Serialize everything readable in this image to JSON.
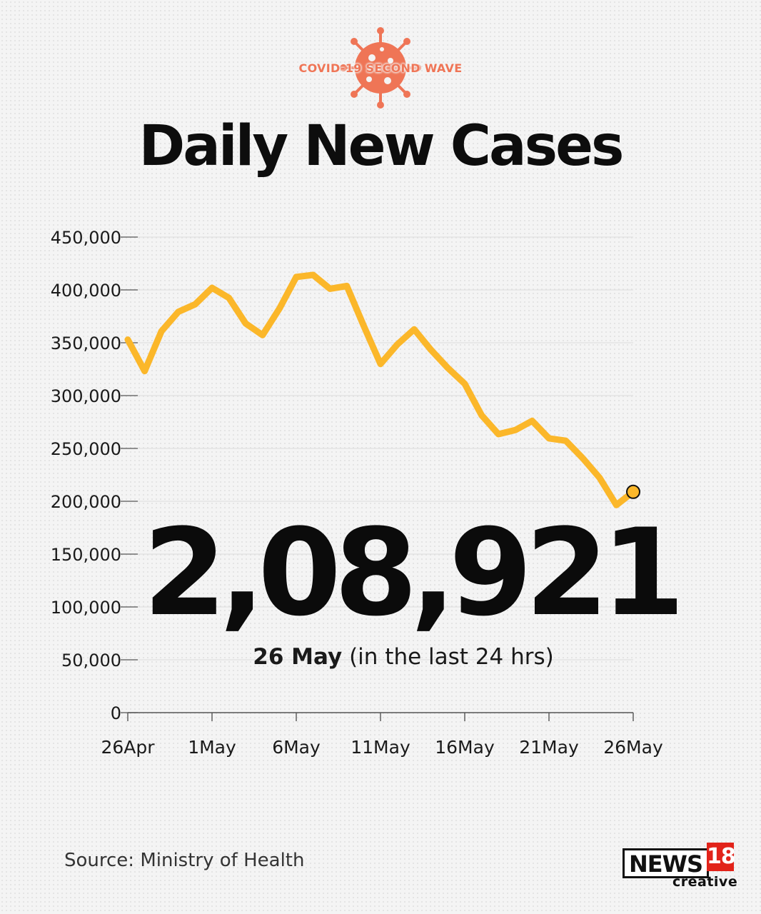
{
  "header": {
    "badge_label": "COVID-19 SECOND WAVE",
    "title": "Daily New Cases"
  },
  "highlight": {
    "value_text": "2,08,921",
    "date_label": "26 May",
    "period_label": "(in the last 24 hrs)"
  },
  "footer": {
    "source": "Source: Ministry of Health",
    "logo_text": "NEWS",
    "logo_number": "18",
    "logo_sub": "creative"
  },
  "colors": {
    "line": "#fbb72a",
    "badge": "#ef7556",
    "marker_stroke": "#111111"
  },
  "chart_data": {
    "type": "line",
    "title": "Daily New Cases",
    "xlabel": "",
    "ylabel": "",
    "x": [
      "26Apr",
      "27Apr",
      "28Apr",
      "29Apr",
      "30Apr",
      "1May",
      "2May",
      "3May",
      "4May",
      "5May",
      "6May",
      "7May",
      "8May",
      "9May",
      "10May",
      "11May",
      "12May",
      "13May",
      "14May",
      "15May",
      "16May",
      "17May",
      "18May",
      "19May",
      "20May",
      "21May",
      "22May",
      "23May",
      "24May",
      "25May",
      "26May"
    ],
    "x_tick_labels": [
      "26Apr",
      "1May",
      "6May",
      "11May",
      "16May",
      "21May",
      "26May"
    ],
    "x_tick_positions": [
      0,
      5,
      10,
      15,
      20,
      25,
      30
    ],
    "y_ticks": [
      0,
      50000,
      100000,
      150000,
      200000,
      250000,
      300000,
      350000,
      400000,
      450000
    ],
    "y_tick_labels": [
      "0",
      "50,000",
      "100,000",
      "150,000",
      "200,000",
      "250,000",
      "300,000",
      "350,000",
      "400,000",
      "450,000"
    ],
    "ylim": [
      0,
      450000
    ],
    "grid": true,
    "series": [
      {
        "values": [
          352991,
          323144,
          360960,
          379257,
          386452,
          401993,
          392488,
          368147,
          357229,
          382315,
          412262,
          414188,
          401078,
          403738,
          366161,
          329942,
          348421,
          362727,
          343144,
          326098,
          311170,
          281386,
          263533,
          267334,
          276070,
          259551,
          257299,
          240842,
          222315,
          196427,
          208921
        ]
      }
    ],
    "highlight_point": {
      "x": "26May",
      "y": 208921
    }
  }
}
